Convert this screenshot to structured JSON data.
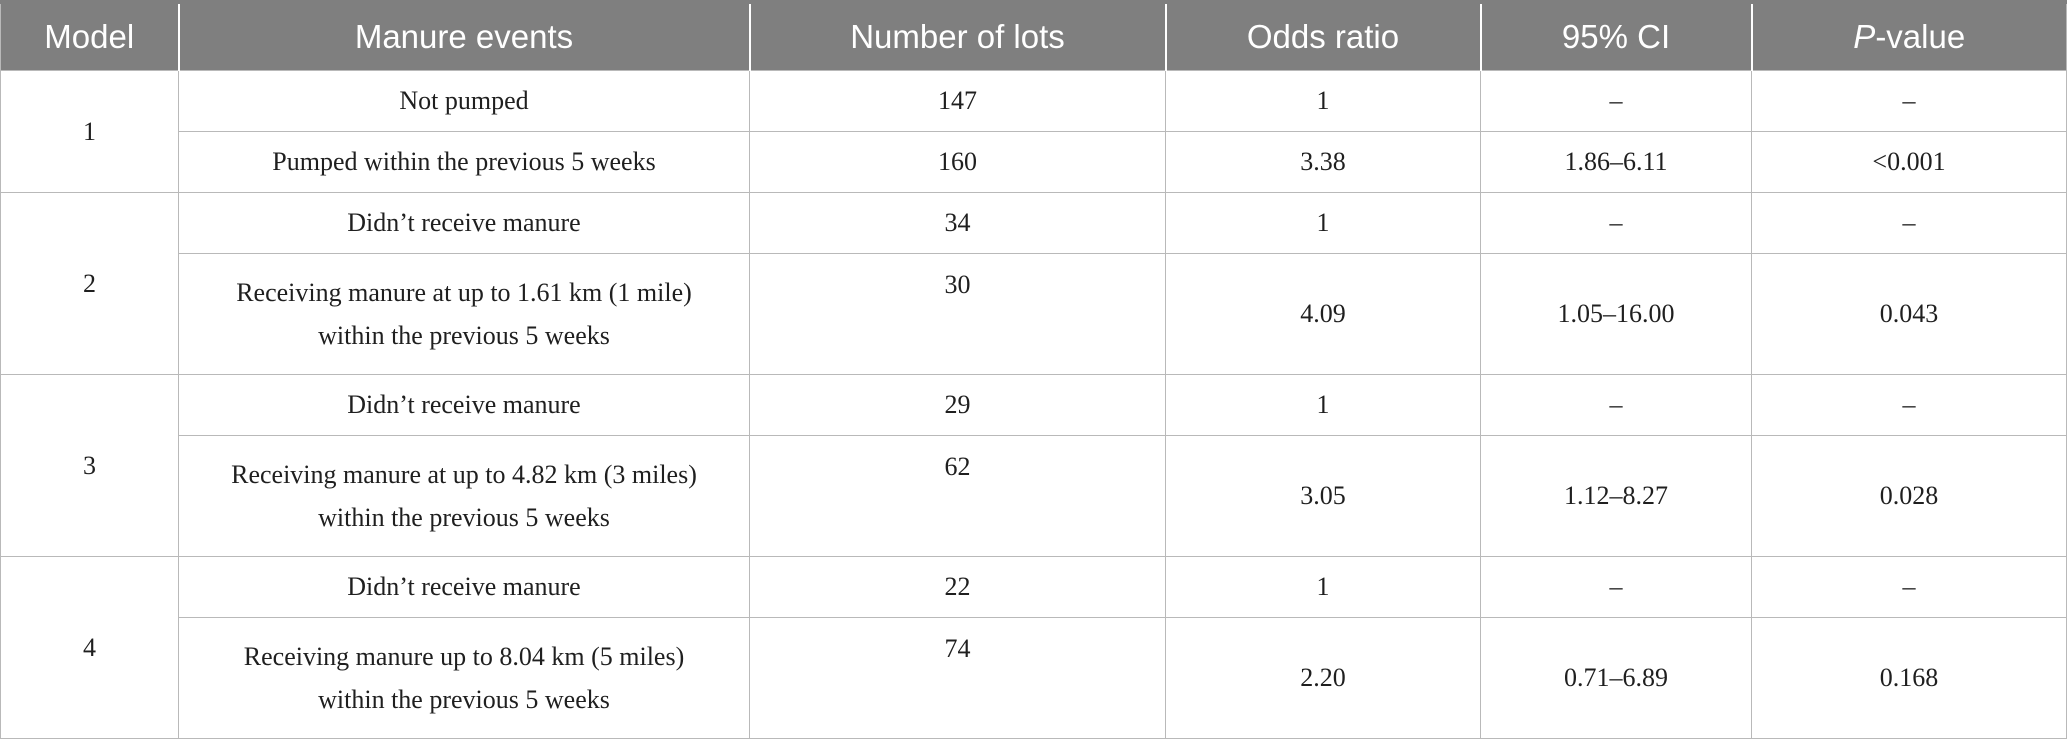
{
  "header": {
    "model": "Model",
    "manure_events": "Manure events",
    "number_of_lots": "Number of lots",
    "odds_ratio": "Odds ratio",
    "ci": "95% CI",
    "p_italic": "P",
    "p_suffix": "-value"
  },
  "models": [
    {
      "model": "1",
      "rows": [
        {
          "event_line1": "Not pumped",
          "event_line2": "",
          "lots": "147",
          "odds": "1",
          "ci": "–",
          "p": "–"
        },
        {
          "event_line1": "Pumped within the previous 5 weeks",
          "event_line2": "",
          "lots": "160",
          "odds": "3.38",
          "ci": "1.86–6.11",
          "p": "<0.001"
        }
      ]
    },
    {
      "model": "2",
      "rows": [
        {
          "event_line1": "Didn’t receive manure",
          "event_line2": "",
          "lots": "34",
          "odds": "1",
          "ci": "–",
          "p": "–"
        },
        {
          "event_line1": "Receiving manure at up to 1.61 km (1 mile)",
          "event_line2": "within the previous 5 weeks",
          "lots": "30",
          "odds": "4.09",
          "ci": "1.05–16.00",
          "p": "0.043"
        }
      ]
    },
    {
      "model": "3",
      "rows": [
        {
          "event_line1": "Didn’t receive manure",
          "event_line2": "",
          "lots": "29",
          "odds": "1",
          "ci": "–",
          "p": "–"
        },
        {
          "event_line1": "Receiving manure at up to 4.82 km (3 miles)",
          "event_line2": "within the previous 5 weeks",
          "lots": "62",
          "odds": "3.05",
          "ci": "1.12–8.27",
          "p": "0.028"
        }
      ]
    },
    {
      "model": "4",
      "rows": [
        {
          "event_line1": "Didn’t receive manure",
          "event_line2": "",
          "lots": "22",
          "odds": "1",
          "ci": "–",
          "p": "–"
        },
        {
          "event_line1": "Receiving manure up to 8.04 km (5 miles)",
          "event_line2": "within the previous 5 weeks",
          "lots": "74",
          "odds": "2.20",
          "ci": "0.71–6.89",
          "p": "0.168"
        }
      ]
    }
  ]
}
